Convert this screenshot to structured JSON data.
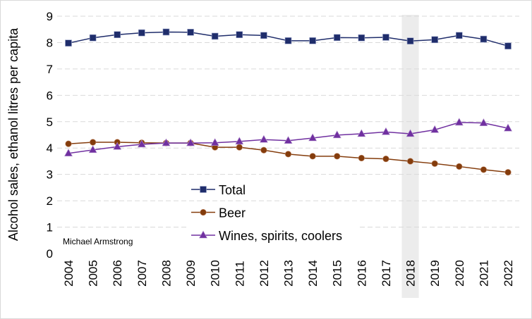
{
  "chart_data": {
    "type": "line",
    "title": "",
    "xlabel": "",
    "ylabel": "Alcohol sales, ethanol litres per capita",
    "ylim": [
      0,
      9
    ],
    "yticks": [
      0,
      1,
      2,
      3,
      4,
      5,
      6,
      7,
      8,
      9
    ],
    "grid": true,
    "legend_position": "center-left",
    "highlight_category": "2018",
    "annotation": "Michael Armstrong",
    "categories": [
      "2004",
      "2005",
      "2006",
      "2007",
      "2008",
      "2009",
      "2010",
      "2011",
      "2012",
      "2013",
      "2014",
      "2015",
      "2016",
      "2017",
      "2018",
      "2019",
      "2020",
      "2021",
      "2022"
    ],
    "series": [
      {
        "name": "Total",
        "color": "#1f2d6b",
        "marker": "square",
        "values": [
          7.98,
          8.18,
          8.3,
          8.37,
          8.4,
          8.39,
          8.24,
          8.3,
          8.27,
          8.07,
          8.07,
          8.19,
          8.18,
          8.2,
          8.06,
          8.11,
          8.27,
          8.13,
          7.87
        ]
      },
      {
        "name": "Beer",
        "color": "#843c0c",
        "marker": "circle",
        "values": [
          4.16,
          4.22,
          4.22,
          4.2,
          4.19,
          4.19,
          4.03,
          4.03,
          3.92,
          3.77,
          3.69,
          3.69,
          3.62,
          3.59,
          3.5,
          3.41,
          3.3,
          3.18,
          3.08
        ]
      },
      {
        "name": "Wines, spirits, coolers",
        "color": "#7030a0",
        "marker": "triangle",
        "values": [
          3.8,
          3.93,
          4.05,
          4.14,
          4.19,
          4.19,
          4.2,
          4.25,
          4.32,
          4.28,
          4.38,
          4.49,
          4.54,
          4.61,
          4.54,
          4.69,
          4.97,
          4.95,
          4.75
        ]
      }
    ]
  }
}
